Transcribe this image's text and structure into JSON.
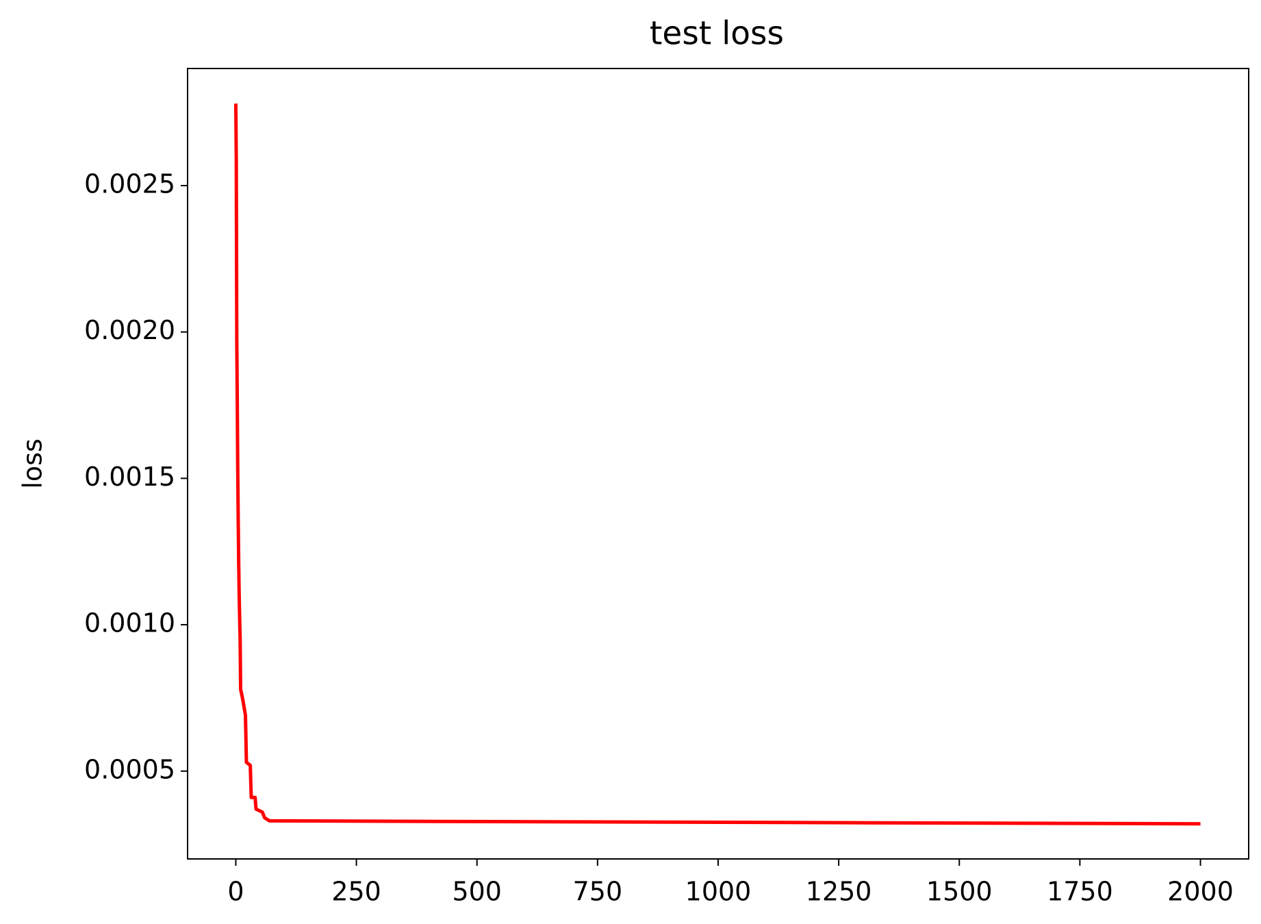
{
  "chart_data": {
    "type": "line",
    "title": "test loss",
    "y_label": "loss",
    "x": [
      0,
      1,
      2,
      3,
      4,
      5,
      6,
      7,
      8,
      9,
      10,
      15,
      20,
      22,
      30,
      32,
      40,
      42,
      55,
      60,
      70,
      2000
    ],
    "series": [
      {
        "name": "test loss",
        "color": "#ff0000",
        "values": [
          0.00278,
          0.00258,
          0.00198,
          0.00177,
          0.00153,
          0.00136,
          0.00121,
          0.0011,
          0.00102,
          0.00095,
          0.00078,
          0.00074,
          0.00069,
          0.00053,
          0.00052,
          0.00041,
          0.00041,
          0.00037,
          0.00036,
          0.00034,
          0.00033,
          0.00032
        ]
      }
    ],
    "xlim": [
      -100,
      2100
    ],
    "xticks": [
      0,
      250,
      500,
      750,
      1000,
      1250,
      1500,
      1750,
      2000
    ],
    "ylim": [
      0.0002,
      0.0029
    ],
    "yticks": [
      {
        "value": 0.0005,
        "label": "0.0005"
      },
      {
        "value": 0.001,
        "label": "0.0010"
      },
      {
        "value": 0.0015,
        "label": "0.0015"
      },
      {
        "value": 0.002,
        "label": "0.0020"
      },
      {
        "value": 0.0025,
        "label": "0.0025"
      }
    ],
    "grid": false
  }
}
